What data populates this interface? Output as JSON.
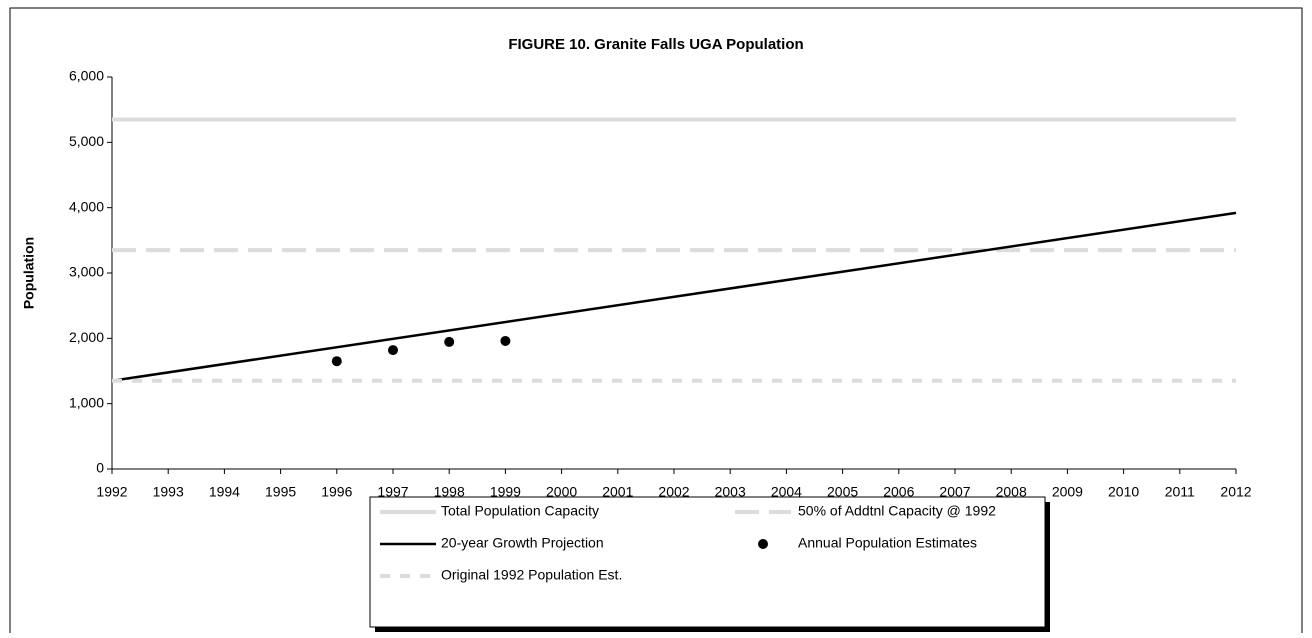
{
  "chart_data": {
    "type": "line",
    "title": "FIGURE 10. Granite Falls UGA Population",
    "ylabel": "Population",
    "xlim": [
      1992,
      2012
    ],
    "xticks": [
      1992,
      1993,
      1994,
      1995,
      1996,
      1997,
      1998,
      1999,
      2000,
      2001,
      2002,
      2003,
      2004,
      2005,
      2006,
      2007,
      2008,
      2009,
      2010,
      2011,
      2012
    ],
    "ylim": [
      0,
      6000
    ],
    "yticks": [
      0,
      {
        "value": 1000,
        "label": "1,000"
      },
      {
        "value": 2000,
        "label": "2,000"
      },
      {
        "value": 3000,
        "label": "3,000"
      },
      {
        "value": 4000,
        "label": "4,000"
      },
      {
        "value": 5000,
        "label": "5,000"
      },
      {
        "value": 6000,
        "label": "6,000"
      }
    ],
    "series": [
      {
        "name": "Total Population Capacity",
        "color": "#dcdcdc",
        "style": "solid",
        "x": [
          1992,
          2012
        ],
        "values": [
          5350,
          5350
        ]
      },
      {
        "name": "50% of Addtnl Capacity @ 1992",
        "color": "#dcdcdc",
        "style": "dashed",
        "x": [
          1992,
          2012
        ],
        "values": [
          3350,
          3350
        ]
      },
      {
        "name": "20-year Growth Projection",
        "color": "#000000",
        "style": "solid",
        "x": [
          1992,
          2012
        ],
        "values": [
          1350,
          3920
        ]
      },
      {
        "name": "Annual Population Estimates",
        "color": "#000000",
        "style": "markers",
        "x": [
          1996,
          1997,
          1998,
          1999
        ],
        "values": [
          1650,
          1820,
          1945,
          1960
        ]
      },
      {
        "name": "Original 1992 Population Est.",
        "color": "#dcdcdc",
        "style": "dotted",
        "x": [
          1992,
          2012
        ],
        "values": [
          1350,
          1350
        ]
      }
    ]
  }
}
